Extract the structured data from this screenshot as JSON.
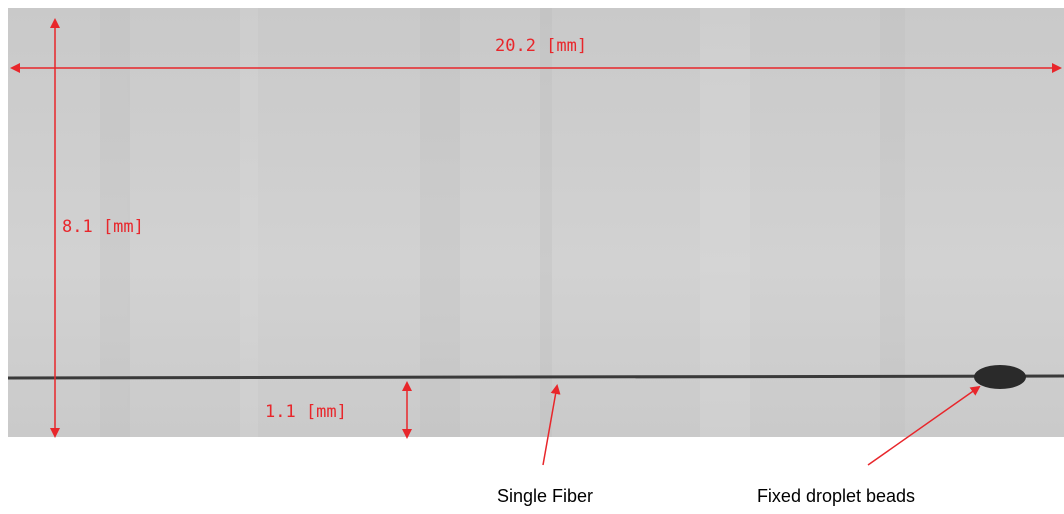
{
  "dimensions": {
    "width": "20.2 [mm]",
    "height": "8.1 [mm]",
    "fiber_height": "1.1 [mm]"
  },
  "labels": {
    "fiber": "Single Fiber",
    "beads": "Fixed droplet beads"
  }
}
